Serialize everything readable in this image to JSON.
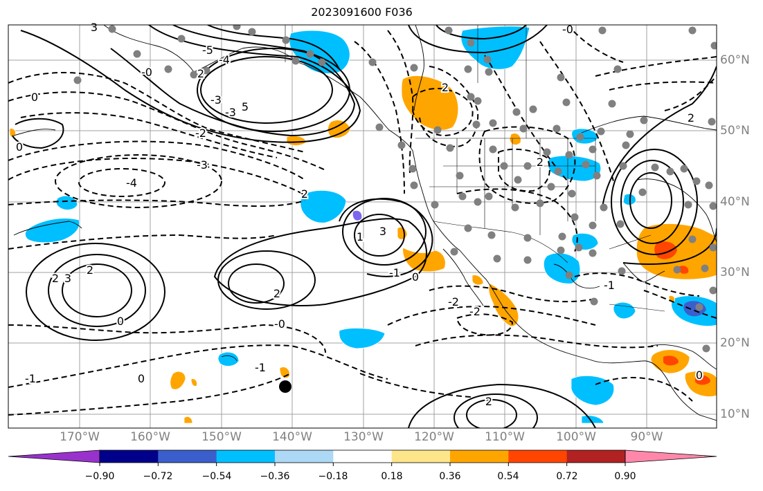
{
  "title": "2023091600 F036",
  "lon_ticks": [
    "170°W",
    "160°W",
    "150°W",
    "140°W",
    "130°W",
    "120°W",
    "110°W",
    "100°W",
    "90°W"
  ],
  "lat_ticks": [
    "60°N",
    "50°N",
    "40°N",
    "30°N",
    "20°N",
    "10°N"
  ],
  "colorbar": {
    "tick_labels": [
      "−0.90",
      "−0.72",
      "−0.54",
      "−0.36",
      "−0.18",
      "0.18",
      "0.36",
      "0.54",
      "0.72",
      "0.90"
    ],
    "colors": [
      "#9932cc",
      "#00008b",
      "#3a5fcd",
      "#00bfff",
      "#add8f6",
      "#ffffff",
      "#fde68a",
      "#ffa500",
      "#ff4500",
      "#b22222",
      "#ff88aa"
    ]
  },
  "contour_labels": [
    {
      "text": "3"
    },
    {
      "text": "-0"
    },
    {
      "text": "2"
    },
    {
      "text": "0"
    },
    {
      "text": "-5"
    },
    {
      "text": "-4"
    },
    {
      "text": "-3"
    },
    {
      "text": "5"
    },
    {
      "text": "-3"
    },
    {
      "text": "-2"
    },
    {
      "text": "0"
    },
    {
      "text": "-3"
    },
    {
      "text": "-4"
    },
    {
      "text": "2"
    },
    {
      "text": "3"
    },
    {
      "text": "1"
    },
    {
      "text": "0"
    },
    {
      "text": "-2"
    },
    {
      "text": "-2"
    },
    {
      "text": "2"
    },
    {
      "text": "3"
    },
    {
      "text": "2"
    },
    {
      "text": "2"
    },
    {
      "text": "0"
    },
    {
      "text": "2"
    },
    {
      "text": "2"
    },
    {
      "text": "-0"
    },
    {
      "text": "-1"
    },
    {
      "text": "0"
    },
    {
      "text": "-1"
    },
    {
      "text": "-1"
    },
    {
      "text": "0"
    },
    {
      "text": "2"
    },
    {
      "text": "2"
    },
    {
      "text": "-0"
    },
    {
      "text": "-1"
    }
  ],
  "colors": {
    "contour": "#000000",
    "grid": "#a0a0a0",
    "obs_dot": "#808080",
    "neg_fill": "#00bfff",
    "pos_fill": "#ffa500",
    "strong_pos_fill": "#ff4500",
    "strong_neg_fill": "#3a5fcd"
  }
}
